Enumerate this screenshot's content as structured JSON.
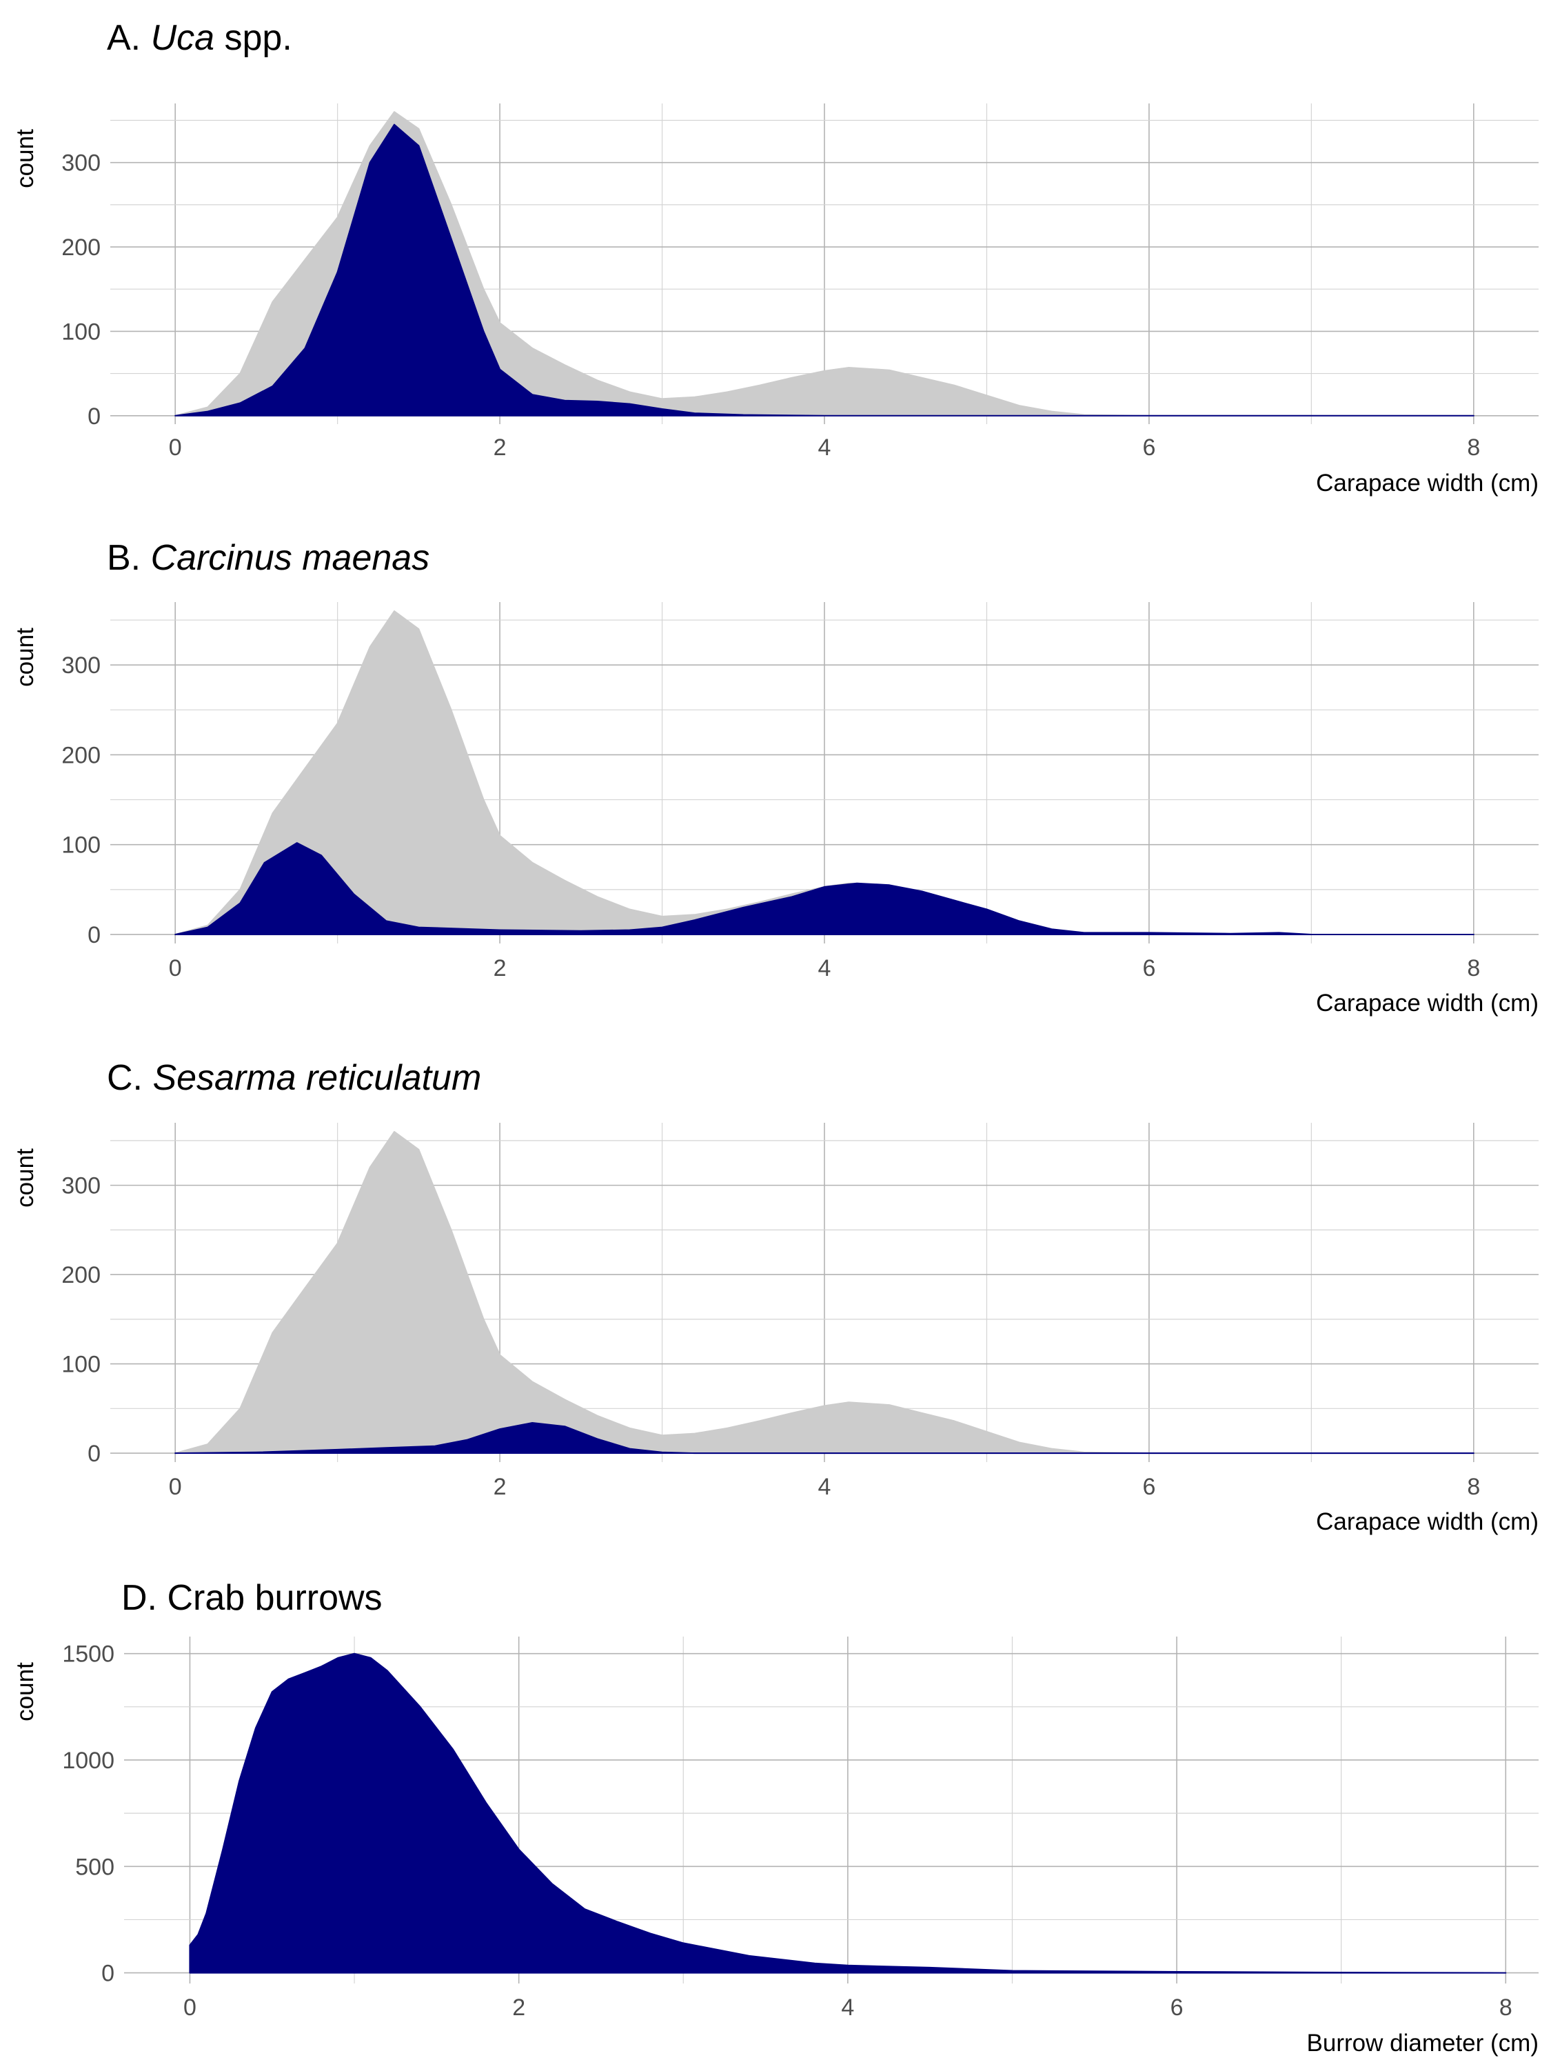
{
  "colors": {
    "background_series": "#cccccc",
    "species_series": "#000080",
    "grid_major": "#b3b3b3",
    "grid_minor": "#d4d4d4",
    "tick_text": "#4d4d4d"
  },
  "chart_data": [
    {
      "type": "area",
      "title_prefix": "A. ",
      "title_italic": "Uca",
      "title_suffix": " spp.",
      "xlabel": "Carapace width (cm)",
      "ylabel": "count",
      "xlim": [
        -0.4,
        8.4
      ],
      "ylim": [
        -10,
        370
      ],
      "xticks": [
        0,
        2,
        4,
        6,
        8
      ],
      "yticks": [
        0,
        100,
        200,
        300
      ],
      "grid": true,
      "series": [
        {
          "role": "background",
          "color": "#cccccc",
          "x": [
            0,
            0.2,
            0.4,
            0.6,
            0.8,
            1.0,
            1.2,
            1.35,
            1.5,
            1.7,
            1.9,
            2.0,
            2.2,
            2.4,
            2.6,
            2.8,
            3.0,
            3.2,
            3.4,
            3.6,
            3.8,
            4.0,
            4.15,
            4.4,
            4.6,
            4.8,
            5.0,
            5.2,
            5.4,
            5.6,
            6.0,
            7.0,
            8.0
          ],
          "y": [
            0,
            10,
            50,
            135,
            185,
            235,
            320,
            360,
            340,
            250,
            150,
            110,
            80,
            60,
            42,
            28,
            20,
            22,
            28,
            36,
            45,
            53,
            57,
            54,
            45,
            36,
            24,
            12,
            5,
            1,
            0,
            0,
            0
          ]
        },
        {
          "role": "species",
          "color": "#000080",
          "x": [
            0,
            0.2,
            0.4,
            0.6,
            0.8,
            1.0,
            1.2,
            1.35,
            1.5,
            1.7,
            1.9,
            2.0,
            2.2,
            2.4,
            2.6,
            2.8,
            3.0,
            3.2,
            3.5,
            4.0,
            5.0,
            6.0,
            8.0
          ],
          "y": [
            0,
            5,
            15,
            35,
            80,
            170,
            300,
            345,
            320,
            210,
            100,
            55,
            25,
            18,
            17,
            14,
            8,
            3,
            1,
            0,
            0,
            0,
            0
          ]
        }
      ]
    },
    {
      "type": "area",
      "title_prefix": "B. ",
      "title_italic": "Carcinus maenas",
      "title_suffix": "",
      "xlabel": "Carapace width (cm)",
      "ylabel": "count",
      "xlim": [
        -0.4,
        8.4
      ],
      "ylim": [
        -10,
        370
      ],
      "xticks": [
        0,
        2,
        4,
        6,
        8
      ],
      "yticks": [
        0,
        100,
        200,
        300
      ],
      "grid": true,
      "series": [
        {
          "role": "background",
          "color": "#cccccc",
          "x": [
            0,
            0.2,
            0.4,
            0.6,
            0.8,
            1.0,
            1.2,
            1.35,
            1.5,
            1.7,
            1.9,
            2.0,
            2.2,
            2.4,
            2.6,
            2.8,
            3.0,
            3.2,
            3.4,
            3.6,
            3.8,
            4.0,
            4.15,
            4.4,
            4.6,
            4.8,
            5.0,
            5.2,
            5.4,
            5.6,
            6.0,
            7.0,
            8.0
          ],
          "y": [
            0,
            10,
            50,
            135,
            185,
            235,
            320,
            360,
            340,
            250,
            150,
            110,
            80,
            60,
            42,
            28,
            20,
            22,
            28,
            36,
            45,
            53,
            57,
            54,
            45,
            36,
            24,
            12,
            5,
            1,
            0,
            0,
            0
          ]
        },
        {
          "role": "species",
          "color": "#000080",
          "x": [
            0,
            0.2,
            0.4,
            0.55,
            0.75,
            0.9,
            1.1,
            1.3,
            1.5,
            2.0,
            2.5,
            2.8,
            3.0,
            3.2,
            3.5,
            3.8,
            4.0,
            4.2,
            4.4,
            4.6,
            4.8,
            5.0,
            5.2,
            5.4,
            5.6,
            6.0,
            6.5,
            6.8,
            7.0,
            8.0
          ],
          "y": [
            0,
            8,
            35,
            80,
            102,
            88,
            45,
            15,
            8,
            5,
            4,
            5,
            8,
            16,
            30,
            42,
            53,
            57,
            55,
            48,
            38,
            28,
            15,
            6,
            2,
            2,
            1,
            2,
            0,
            0
          ]
        }
      ]
    },
    {
      "type": "area",
      "title_prefix": "C. ",
      "title_italic": "Sesarma reticulatum",
      "title_suffix": "",
      "xlabel": "Carapace width (cm)",
      "ylabel": "count",
      "xlim": [
        -0.4,
        8.4
      ],
      "ylim": [
        -10,
        370
      ],
      "xticks": [
        0,
        2,
        4,
        6,
        8
      ],
      "yticks": [
        0,
        100,
        200,
        300
      ],
      "grid": true,
      "series": [
        {
          "role": "background",
          "color": "#cccccc",
          "x": [
            0,
            0.2,
            0.4,
            0.6,
            0.8,
            1.0,
            1.2,
            1.35,
            1.5,
            1.7,
            1.9,
            2.0,
            2.2,
            2.4,
            2.6,
            2.8,
            3.0,
            3.2,
            3.4,
            3.6,
            3.8,
            4.0,
            4.15,
            4.4,
            4.6,
            4.8,
            5.0,
            5.2,
            5.4,
            5.6,
            6.0,
            7.0,
            8.0
          ],
          "y": [
            0,
            10,
            50,
            135,
            185,
            235,
            320,
            360,
            340,
            250,
            150,
            110,
            80,
            60,
            42,
            28,
            20,
            22,
            28,
            36,
            45,
            53,
            57,
            54,
            45,
            36,
            24,
            12,
            5,
            1,
            0,
            0,
            0
          ]
        },
        {
          "role": "species",
          "color": "#000080",
          "x": [
            0,
            0.5,
            1.0,
            1.3,
            1.6,
            1.8,
            2.0,
            2.2,
            2.4,
            2.6,
            2.8,
            3.0,
            3.2,
            4.0,
            6.0,
            8.0
          ],
          "y": [
            0,
            1,
            4,
            6,
            8,
            15,
            27,
            34,
            30,
            16,
            5,
            1,
            0,
            0,
            0,
            0
          ]
        }
      ]
    },
    {
      "type": "area",
      "title_prefix": "D. Crab burrows",
      "title_italic": "",
      "title_suffix": "",
      "xlabel": "Burrow diameter (cm)",
      "ylabel": "count",
      "xlim": [
        -0.4,
        8.2
      ],
      "ylim": [
        -50,
        1580
      ],
      "xticks": [
        0,
        2,
        4,
        6,
        8
      ],
      "yticks": [
        0,
        500,
        1000,
        1500
      ],
      "grid": true,
      "series": [
        {
          "role": "species",
          "color": "#000080",
          "x": [
            0,
            0.0,
            0.05,
            0.1,
            0.2,
            0.3,
            0.4,
            0.5,
            0.6,
            0.7,
            0.8,
            0.9,
            1.0,
            1.1,
            1.2,
            1.4,
            1.6,
            1.8,
            2.0,
            2.2,
            2.4,
            2.6,
            2.8,
            3.0,
            3.4,
            3.8,
            4.0,
            4.5,
            5.0,
            6.0,
            7.0,
            8.0
          ],
          "y": [
            0,
            130,
            180,
            280,
            580,
            900,
            1150,
            1320,
            1380,
            1410,
            1440,
            1480,
            1500,
            1480,
            1420,
            1250,
            1050,
            800,
            580,
            420,
            300,
            240,
            185,
            140,
            80,
            45,
            35,
            25,
            10,
            5,
            2,
            0
          ]
        }
      ]
    }
  ]
}
